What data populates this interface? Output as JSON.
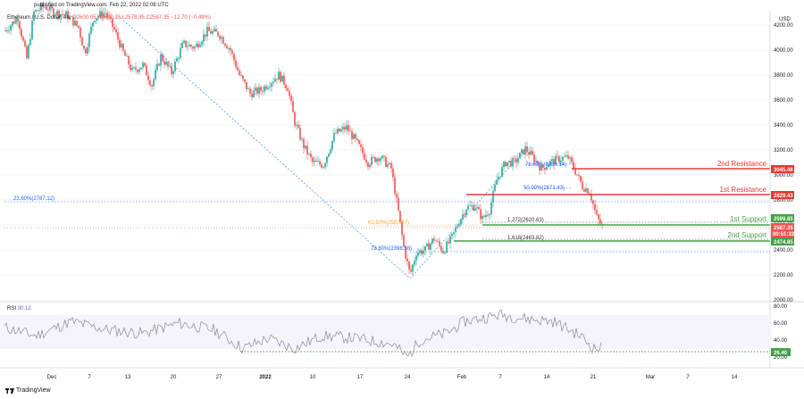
{
  "header": {
    "published": "published on TradingView.com, Feb 22, 2022 02:08 UTC",
    "symbol": "Ethereum / U.S. Dollar, 4h,",
    "ohlc": "O2600.05  H2600.35  L2578.95  C2587.35  −12.70 (−0.49%)"
  },
  "price_axis": {
    "currency": "USD",
    "ticks": [
      "4200.00",
      "4000.00",
      "3800.00",
      "3600.00",
      "3400.00",
      "3200.00",
      "3000.00",
      "2800.00",
      "2600.00",
      "2400.00",
      "2200.00",
      "2000.00"
    ]
  },
  "rsi": {
    "label": "RSI",
    "value": "30.12",
    "ticks": [
      "80.00",
      "60.00",
      "40.00",
      "20.00"
    ],
    "level_tag": "26.40"
  },
  "time_axis": {
    "labels": [
      "Dec",
      "7",
      "13",
      "20",
      "27",
      "2022",
      "10",
      "17",
      "24",
      "Feb",
      "7",
      "14",
      "21",
      "Mar",
      "7",
      "14"
    ]
  },
  "levels": {
    "second_resistance": {
      "label": "2nd Resistance",
      "price": "3045.46"
    },
    "first_resistance": {
      "label": "1st Resistance",
      "price": "2829.43"
    },
    "first_support": {
      "label": "1st Support",
      "price": "2599.85"
    },
    "second_support": {
      "label": "2nd Support",
      "price": "2474.85"
    },
    "current_price": "2587.35",
    "countdown": "00:51:33"
  },
  "fib_annotations": {
    "f1": "23.60%(2787.12)",
    "f2": "61.80%(2587.47)",
    "f3": "78.60%(2398.38)",
    "f4": "78.60%(3050.14)",
    "f5": "50.00%(2871.43)",
    "f6": "1.272(2620.63)",
    "f7": "1.618(2463.82)"
  },
  "colors": {
    "up": "#26a69a",
    "down": "#ef5350",
    "resistance": "#e53935",
    "support": "#43a047",
    "current": "#ef5350",
    "fib_blue": "#2962ff",
    "fib_orange": "#f9a825"
  },
  "branding": {
    "logo_text": "TradingView",
    "logo_icon": "tradingview-logo-icon"
  }
}
